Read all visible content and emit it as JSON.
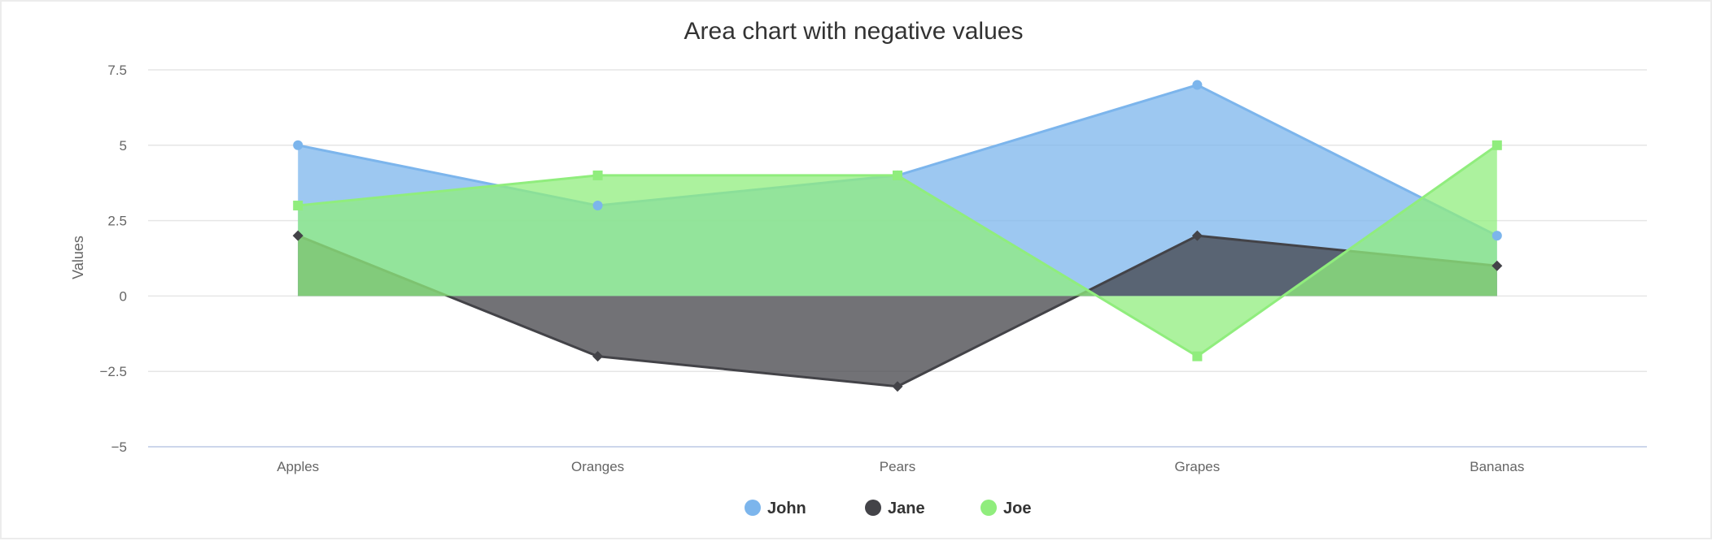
{
  "chart_data": {
    "type": "area",
    "title": "Area chart with negative values",
    "xlabel": "",
    "ylabel": "Values",
    "categories": [
      "Apples",
      "Oranges",
      "Pears",
      "Grapes",
      "Bananas"
    ],
    "ylim": [
      -5,
      7.5
    ],
    "yticks": [
      7.5,
      5,
      2.5,
      0,
      -2.5,
      -5
    ],
    "ytick_labels": [
      "7.5",
      "5",
      "2.5",
      "0",
      "−2.5",
      "−5"
    ],
    "grid": true,
    "legend_position": "bottom-center",
    "series": [
      {
        "name": "John",
        "values": [
          5,
          3,
          4,
          7,
          2
        ],
        "color": "#7cb5ec",
        "marker": "circle"
      },
      {
        "name": "Jane",
        "values": [
          2,
          -2,
          -3,
          2,
          1
        ],
        "color": "#434348",
        "marker": "diamond"
      },
      {
        "name": "Joe",
        "values": [
          3,
          4,
          4,
          -2,
          5
        ],
        "color": "#90ed7d",
        "marker": "square"
      }
    ]
  }
}
